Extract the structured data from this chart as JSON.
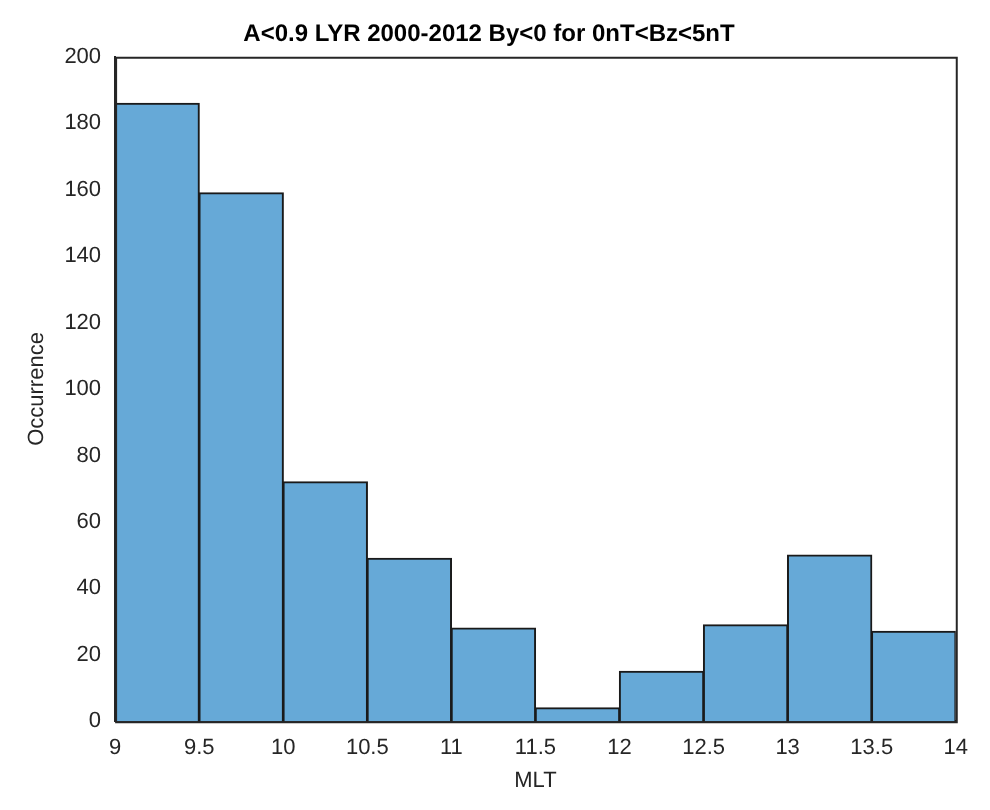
{
  "chart_data": {
    "type": "histogram",
    "title": "A<0.9 LYR 2000-2012 By<0 for 0nT<Bz<5nT",
    "xlabel": "MLT",
    "ylabel": "Occurrence",
    "bins": [
      9,
      9.5,
      10,
      10.5,
      11,
      11.5,
      12,
      12.5,
      13,
      13.5,
      14
    ],
    "values": [
      186,
      159,
      72,
      49,
      28,
      4,
      15,
      29,
      50,
      27
    ],
    "color": "#66a9d7",
    "xlim": [
      9,
      14
    ],
    "xticks": [
      9,
      9.5,
      10,
      10.5,
      11,
      11.5,
      12,
      12.5,
      13,
      13.5,
      14
    ],
    "ylim": [
      0,
      200
    ],
    "yticks": [
      0,
      20,
      40,
      60,
      80,
      100,
      120,
      140,
      160,
      180,
      200
    ],
    "grid": false,
    "legend": false
  }
}
